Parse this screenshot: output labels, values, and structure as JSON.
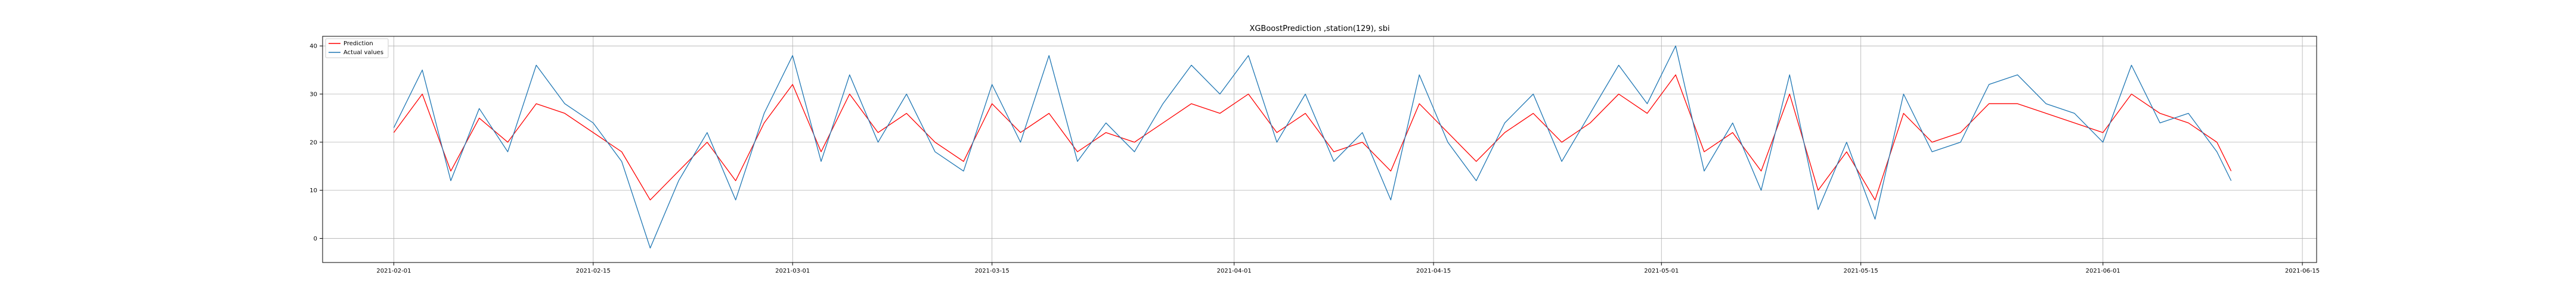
{
  "chart_data": {
    "type": "line",
    "title": "XGBoostPrediction ,station(129), sbi",
    "xlabel": "",
    "ylabel": "",
    "x_range": [
      "2021-01-27",
      "2021-06-16"
    ],
    "x_data_range": [
      "2021-02-01",
      "2021-06-10"
    ],
    "ylim": [
      -5,
      42
    ],
    "grid": true,
    "legend_position": "upper-left",
    "x_ticks": [
      "2021-02-01",
      "2021-02-15",
      "2021-03-01",
      "2021-03-15",
      "2021-04-01",
      "2021-04-15",
      "2021-05-01",
      "2021-05-15",
      "2021-06-01",
      "2021-06-15"
    ],
    "y_ticks": [
      0,
      10,
      20,
      30,
      40
    ],
    "series": [
      {
        "name": "Prediction",
        "color": "#ff0000",
        "x": [
          "2021-02-01",
          "2021-02-03",
          "2021-02-05",
          "2021-02-07",
          "2021-02-09",
          "2021-02-11",
          "2021-02-13",
          "2021-02-15",
          "2021-02-17",
          "2021-02-19",
          "2021-02-21",
          "2021-02-23",
          "2021-02-25",
          "2021-02-27",
          "2021-03-01",
          "2021-03-03",
          "2021-03-05",
          "2021-03-07",
          "2021-03-09",
          "2021-03-11",
          "2021-03-13",
          "2021-03-15",
          "2021-03-17",
          "2021-03-19",
          "2021-03-21",
          "2021-03-23",
          "2021-03-25",
          "2021-03-27",
          "2021-03-29",
          "2021-03-31",
          "2021-04-02",
          "2021-04-04",
          "2021-04-06",
          "2021-04-08",
          "2021-04-10",
          "2021-04-12",
          "2021-04-14",
          "2021-04-16",
          "2021-04-18",
          "2021-04-20",
          "2021-04-22",
          "2021-04-24",
          "2021-04-26",
          "2021-04-28",
          "2021-04-30",
          "2021-05-02",
          "2021-05-04",
          "2021-05-06",
          "2021-05-08",
          "2021-05-10",
          "2021-05-12",
          "2021-05-14",
          "2021-05-16",
          "2021-05-18",
          "2021-05-20",
          "2021-05-22",
          "2021-05-24",
          "2021-05-26",
          "2021-05-28",
          "2021-05-30",
          "2021-06-01",
          "2021-06-03",
          "2021-06-05",
          "2021-06-07",
          "2021-06-09",
          "2021-06-10"
        ],
        "values": [
          22,
          30,
          14,
          25,
          20,
          28,
          26,
          22,
          18,
          8,
          14,
          20,
          12,
          24,
          32,
          18,
          30,
          22,
          26,
          20,
          16,
          28,
          22,
          26,
          18,
          22,
          20,
          24,
          28,
          26,
          30,
          22,
          26,
          18,
          20,
          14,
          28,
          22,
          16,
          22,
          26,
          20,
          24,
          30,
          26,
          34,
          18,
          22,
          14,
          30,
          10,
          18,
          8,
          26,
          20,
          22,
          28,
          28,
          26,
          24,
          22,
          30,
          26,
          24,
          20,
          14
        ]
      },
      {
        "name": "Actual values",
        "color": "#1f77b4",
        "x": [
          "2021-02-01",
          "2021-02-03",
          "2021-02-05",
          "2021-02-07",
          "2021-02-09",
          "2021-02-11",
          "2021-02-13",
          "2021-02-15",
          "2021-02-17",
          "2021-02-19",
          "2021-02-21",
          "2021-02-23",
          "2021-02-25",
          "2021-02-27",
          "2021-03-01",
          "2021-03-03",
          "2021-03-05",
          "2021-03-07",
          "2021-03-09",
          "2021-03-11",
          "2021-03-13",
          "2021-03-15",
          "2021-03-17",
          "2021-03-19",
          "2021-03-21",
          "2021-03-23",
          "2021-03-25",
          "2021-03-27",
          "2021-03-29",
          "2021-03-31",
          "2021-04-02",
          "2021-04-04",
          "2021-04-06",
          "2021-04-08",
          "2021-04-10",
          "2021-04-12",
          "2021-04-14",
          "2021-04-16",
          "2021-04-18",
          "2021-04-20",
          "2021-04-22",
          "2021-04-24",
          "2021-04-26",
          "2021-04-28",
          "2021-04-30",
          "2021-05-02",
          "2021-05-04",
          "2021-05-06",
          "2021-05-08",
          "2021-05-10",
          "2021-05-12",
          "2021-05-14",
          "2021-05-16",
          "2021-05-18",
          "2021-05-20",
          "2021-05-22",
          "2021-05-24",
          "2021-05-26",
          "2021-05-28",
          "2021-05-30",
          "2021-06-01",
          "2021-06-03",
          "2021-06-05",
          "2021-06-07",
          "2021-06-09",
          "2021-06-10"
        ],
        "values": [
          23,
          35,
          12,
          27,
          18,
          36,
          28,
          24,
          16,
          -2,
          12,
          22,
          8,
          26,
          38,
          16,
          34,
          20,
          30,
          18,
          14,
          32,
          20,
          38,
          16,
          24,
          18,
          28,
          36,
          30,
          38,
          20,
          30,
          16,
          22,
          8,
          34,
          20,
          12,
          24,
          30,
          16,
          26,
          36,
          28,
          40,
          14,
          24,
          10,
          34,
          6,
          20,
          4,
          30,
          18,
          20,
          32,
          34,
          28,
          26,
          20,
          36,
          24,
          26,
          18,
          12
        ]
      }
    ]
  }
}
